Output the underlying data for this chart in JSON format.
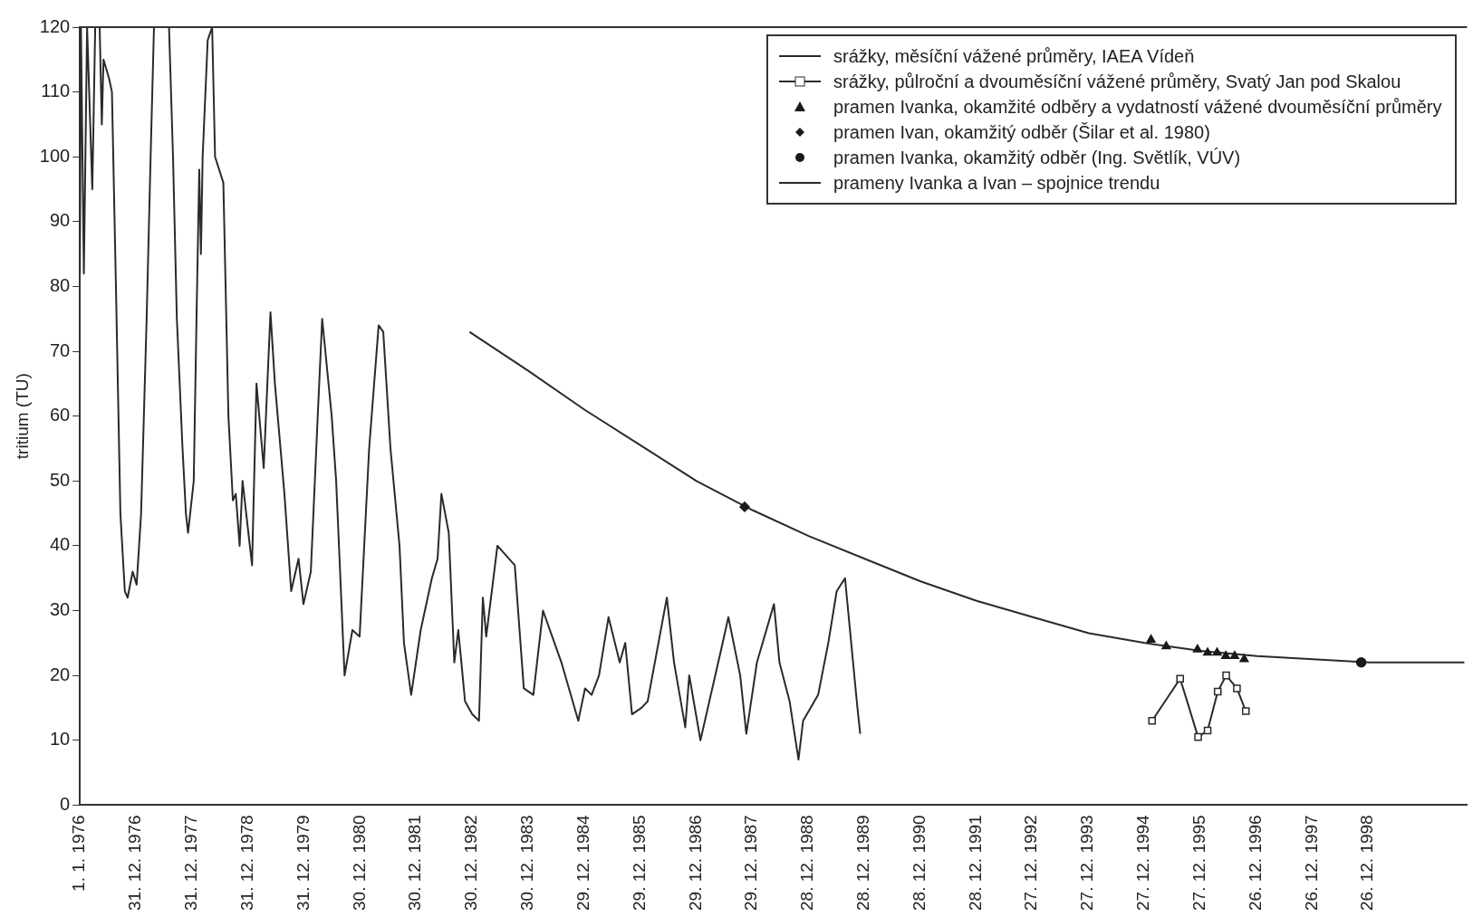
{
  "chart_data": {
    "type": "line",
    "ylabel": "tritium (TU)",
    "xlim": [
      "1976-01-01",
      "2000-10-01"
    ],
    "ylim": [
      0,
      120
    ],
    "yticks": [
      0,
      10,
      20,
      30,
      40,
      50,
      60,
      70,
      80,
      90,
      100,
      110,
      120
    ],
    "xticks": [
      {
        "value": "1976-01-01",
        "label": "1. 1. 1976"
      },
      {
        "value": "1976-12-31",
        "label": "31. 12. 1976"
      },
      {
        "value": "1977-12-31",
        "label": "31. 12. 1977"
      },
      {
        "value": "1978-12-31",
        "label": "31. 12. 1978"
      },
      {
        "value": "1979-12-31",
        "label": "31. 12. 1979"
      },
      {
        "value": "1980-12-30",
        "label": "30. 12. 1980"
      },
      {
        "value": "1981-12-30",
        "label": "30. 12. 1981"
      },
      {
        "value": "1982-12-30",
        "label": "30. 12. 1982"
      },
      {
        "value": "1983-12-30",
        "label": "30. 12. 1983"
      },
      {
        "value": "1984-12-29",
        "label": "29. 12. 1984"
      },
      {
        "value": "1985-12-29",
        "label": "29. 12. 1985"
      },
      {
        "value": "1986-12-29",
        "label": "29. 12. 1986"
      },
      {
        "value": "1987-12-29",
        "label": "29. 12. 1987"
      },
      {
        "value": "1988-12-28",
        "label": "28. 12. 1988"
      },
      {
        "value": "1989-12-28",
        "label": "28. 12. 1989"
      },
      {
        "value": "1990-12-28",
        "label": "28. 12. 1990"
      },
      {
        "value": "1991-12-28",
        "label": "28. 12. 1991"
      },
      {
        "value": "1992-12-27",
        "label": "27. 12. 1992"
      },
      {
        "value": "1993-12-27",
        "label": "27. 12. 1993"
      },
      {
        "value": "1994-12-27",
        "label": "27. 12. 1994"
      },
      {
        "value": "1995-12-27",
        "label": "27. 12. 1995"
      },
      {
        "value": "1996-12-26",
        "label": "26. 12. 1996"
      },
      {
        "value": "1997-12-26",
        "label": "26. 12. 1997"
      },
      {
        "value": "1998-12-26",
        "label": "26. 12. 1998"
      }
    ],
    "grid": false,
    "legend": "top right",
    "line_style": "solid",
    "series": [
      {
        "name": "srážky, měsíční vážené průměry, IAEA Vídeň",
        "type": "line",
        "marker": "none",
        "color": "#2a2a2a",
        "x": [
          "1976-01-01",
          "1976-01-08",
          "1976-01-27",
          "1976-02-17",
          "1976-03-22",
          "1976-04-10",
          "1976-05-09",
          "1976-05-23",
          "1976-06-03",
          "1976-07-10",
          "1976-07-28",
          "1976-08-23",
          "1976-09-21",
          "1976-10-20",
          "1976-11-07",
          "1976-12-10",
          "1977-01-05",
          "1977-02-03",
          "1977-03-11",
          "1977-04-06",
          "1977-04-28",
          "1977-08-04",
          "1977-08-30",
          "1977-09-24",
          "1977-10-31",
          "1977-11-22",
          "1977-12-06",
          "1978-01-12",
          "1978-01-30",
          "1978-02-17",
          "1978-02-28",
          "1978-03-11",
          "1978-04-13",
          "1978-05-12",
          "1978-05-31",
          "1978-07-24",
          "1978-08-26",
          "1978-09-24",
          "1978-10-13",
          "1978-11-07",
          "1978-11-26",
          "1979-01-27",
          "1979-02-25",
          "1979-04-13",
          "1979-05-27",
          "1979-06-25",
          "1979-08-26",
          "1979-10-09",
          "1979-11-26",
          "1979-12-28",
          "1980-02-14",
          "1980-03-30",
          "1980-04-28",
          "1980-06-29",
          "1980-07-28",
          "1980-09-21",
          "1980-11-11",
          "1980-12-28",
          "1981-02-28",
          "1981-05-01",
          "1981-05-31",
          "1981-07-17",
          "1981-09-14",
          "1981-10-13",
          "1981-11-29",
          "1982-01-30",
          "1982-04-13",
          "1982-05-20",
          "1982-06-14",
          "1982-08-01",
          "1982-09-06",
          "1982-10-02",
          "1982-11-15",
          "1983-01-01",
          "1983-02-14",
          "1983-03-11",
          "1983-04-02",
          "1983-06-14",
          "1983-10-05",
          "1983-12-03",
          "1984-02-03",
          "1984-04-06",
          "1984-08-04",
          "1984-11-22",
          "1985-01-05",
          "1985-02-17",
          "1985-04-06",
          "1985-06-07",
          "1985-08-19",
          "1985-09-24",
          "1985-11-07",
          "1986-01-08",
          "1986-02-17",
          "1986-06-22",
          "1986-08-08",
          "1986-10-20",
          "1986-11-15",
          "1987-01-27",
          "1987-06-11",
          "1987-07-28",
          "1987-10-13",
          "1987-11-22",
          "1988-01-30",
          "1988-05-20",
          "1988-06-25",
          "1988-08-30",
          "1988-10-27",
          "1988-11-26",
          "1989-03-04",
          "1989-05-09",
          "1989-07-03",
          "1989-08-26",
          "1989-11-15",
          "1989-12-03"
        ],
        "values": [
          82,
          120,
          82,
          120,
          95,
          120,
          120,
          105,
          115,
          112,
          110,
          80,
          45,
          33,
          32,
          36,
          34,
          45,
          75,
          100,
          120,
          120,
          100,
          75,
          55,
          45,
          42,
          50,
          75,
          98,
          85,
          100,
          118,
          120,
          100,
          96,
          60,
          47,
          48,
          40,
          50,
          37,
          65,
          52,
          76,
          65,
          48,
          33,
          38,
          31,
          36,
          60,
          75,
          60,
          50,
          20,
          27,
          26,
          55,
          74,
          73,
          55,
          40,
          25,
          17,
          27,
          35,
          38,
          48,
          42,
          22,
          27,
          16,
          14,
          13,
          32,
          26,
          40,
          37,
          18,
          17,
          30,
          22,
          13,
          18,
          17,
          20,
          29,
          22,
          25,
          14,
          15,
          16,
          32,
          22,
          12,
          20,
          10,
          24,
          29,
          20,
          11,
          22,
          31,
          22,
          16,
          7,
          13,
          17,
          25,
          33,
          35,
          15,
          11
        ]
      },
      {
        "name": "srážky, půlroční a dvouměsíční vážené průměry, Svatý Jan pod Skalou",
        "type": "line",
        "marker": "square",
        "color": "#2a2a2a",
        "x": [
          "1995-02-17",
          "1995-08-19",
          "1995-12-14",
          "1996-02-14",
          "1996-04-20",
          "1996-06-14",
          "1996-08-23",
          "1996-10-20"
        ],
        "values": [
          13,
          19.5,
          10.5,
          11.5,
          17.5,
          20,
          18,
          14.5
        ]
      },
      {
        "name": "pramen Ivanka, okamžité odběry a vydatností vážené dvouměsíční průměry",
        "type": "scatter",
        "marker": "triangle",
        "color": "#1a1a1a",
        "x": [
          "1995-02-10",
          "1995-05-20",
          "1995-12-10",
          "1996-02-14",
          "1996-04-16",
          "1996-06-11",
          "1996-08-08",
          "1996-10-09"
        ],
        "values": [
          25.5,
          24.5,
          24,
          23.5,
          23.5,
          23,
          23,
          22.5
        ]
      },
      {
        "name": "pramen Ivan, okamžitý odběr (Šilar et al. 1980)",
        "type": "scatter",
        "marker": "diamond",
        "color": "#1a1a1a",
        "x": [
          "1987-11-11"
        ],
        "values": [
          46
        ]
      },
      {
        "name": "pramen Ivanka, okamžitý odběr (Ing. Světlík, VÚV)",
        "type": "scatter",
        "marker": "circle",
        "color": "#1a1a1a",
        "x": [
          "1998-11-11"
        ],
        "values": [
          22
        ]
      },
      {
        "name": "prameny Ivanka a Ivan – spojnice trendu",
        "type": "line",
        "marker": "none",
        "color": "#2a2a2a",
        "x": [
          "1982-12-14",
          "1984-01-01",
          "1985-01-01",
          "1986-01-01",
          "1987-01-01",
          "1988-01-01",
          "1989-01-01",
          "1990-01-01",
          "1991-01-01",
          "1992-01-01",
          "1993-01-01",
          "1994-01-01",
          "1995-01-01",
          "1996-01-01",
          "1997-01-01",
          "1998-01-01",
          "1999-01-01",
          "2000-09-13"
        ],
        "values": [
          73,
          67,
          61,
          55.5,
          50,
          45.5,
          41.5,
          38,
          34.5,
          31.5,
          29,
          26.5,
          25,
          23.8,
          23,
          22.5,
          22,
          22
        ]
      }
    ]
  }
}
